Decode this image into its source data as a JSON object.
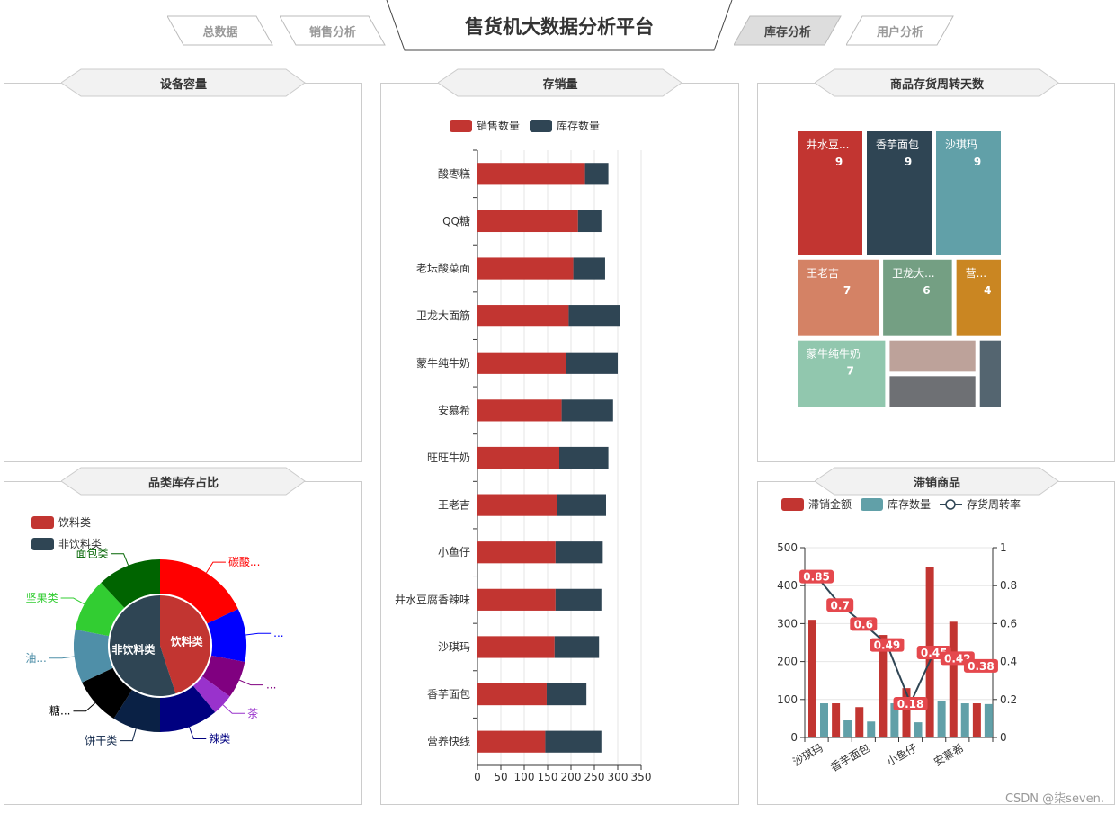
{
  "header": {
    "title": "售货机大数据分析平台",
    "tabs": [
      {
        "label": "总数据",
        "active": false
      },
      {
        "label": "销售分析",
        "active": false
      },
      {
        "label": "库存分析",
        "active": true
      },
      {
        "label": "用户分析",
        "active": false
      }
    ]
  },
  "panels": {
    "capacity": {
      "title": "设备容量"
    },
    "stock_sales": {
      "title": "存销量"
    },
    "turnover_days": {
      "title": "商品存货周转天数"
    },
    "category_share": {
      "title": "品类库存占比"
    },
    "slow_moving": {
      "title": "滞销商品"
    }
  },
  "watermark": "CSDN @柒seven.",
  "colors": {
    "red": "#c23531",
    "dark": "#2f4554",
    "teal": "#61a0a8",
    "label_red": "#e5484d"
  },
  "chart_data": [
    {
      "id": "stock_sales",
      "type": "bar",
      "orientation": "horizontal",
      "stacked": true,
      "legend": [
        "销售数量",
        "库存数量"
      ],
      "legend_position": "top",
      "categories": [
        "酸枣糕",
        "QQ糖",
        "老坛酸菜面",
        "卫龙大面筋",
        "蒙牛纯牛奶",
        "安慕希",
        "旺旺牛奶",
        "王老吉",
        "小鱼仔",
        "井水豆腐香辣味",
        "沙琪玛",
        "香芋面包",
        "营养快线"
      ],
      "series": [
        {
          "name": "销售数量",
          "values": [
            230,
            215,
            205,
            195,
            190,
            180,
            175,
            170,
            167,
            167,
            165,
            148,
            145
          ]
        },
        {
          "name": "库存数量",
          "values": [
            50,
            50,
            68,
            110,
            110,
            110,
            105,
            105,
            101,
            98,
            95,
            85,
            120
          ]
        }
      ],
      "xlim": [
        0,
        350
      ],
      "xticks": [
        0,
        50,
        100,
        150,
        200,
        250,
        300,
        350
      ],
      "grid": true
    },
    {
      "id": "turnover_days",
      "type": "treemap",
      "items": [
        {
          "name": "井水豆...",
          "value": 9,
          "value_label": "9",
          "color": "#c23531"
        },
        {
          "name": "香芋面包",
          "value": 9,
          "value_label": "9",
          "color": "#2f4554"
        },
        {
          "name": "沙琪玛",
          "value": 9,
          "value_label": "9",
          "color": "#61a0a8"
        },
        {
          "name": "王老吉",
          "value": 7,
          "value_label": "7",
          "color": "#d48265"
        },
        {
          "name": "卫龙大...",
          "value": 6,
          "value_label": "6",
          "color": "#749f83"
        },
        {
          "name": "营...",
          "value": 4,
          "value_label": "4",
          "color": "#ca8622"
        },
        {
          "name": "蒙牛纯牛奶",
          "value": 7,
          "value_label": "7",
          "color": "#91c7ae"
        },
        {
          "name": "",
          "value": 3,
          "value_label": "",
          "color": "#bda29a"
        },
        {
          "name": "",
          "value": 3,
          "value_label": "",
          "color": "#6e7074"
        },
        {
          "name": "",
          "value": 2,
          "value_label": "",
          "color": "#546570"
        }
      ]
    },
    {
      "id": "category_share",
      "type": "pie",
      "legend": [
        "饮料类",
        "非饮料类"
      ],
      "legend_position": "top-left",
      "inner": [
        {
          "name": "饮料类",
          "value": 45,
          "color": "#c23531"
        },
        {
          "name": "非饮料类",
          "value": 55,
          "color": "#2f4554"
        }
      ],
      "outer": [
        {
          "name": "碳酸...",
          "value": 18,
          "color": "#ff0000"
        },
        {
          "name": "...",
          "value": 10,
          "color": "#0000ff"
        },
        {
          "name": "...",
          "value": 7,
          "color": "#800080"
        },
        {
          "name": "茶",
          "value": 4,
          "color": "#9932cc"
        },
        {
          "name": "辣类",
          "value": 11,
          "color": "#000080"
        },
        {
          "name": "饼干类",
          "value": 9,
          "color": "#0a2145"
        },
        {
          "name": "糖...",
          "value": 9,
          "color": "#000000"
        },
        {
          "name": "油...",
          "value": 10,
          "color": "#4f8fa8"
        },
        {
          "name": "坚果类",
          "value": 10,
          "color": "#32cd32"
        },
        {
          "name": "面包类",
          "value": 12,
          "color": "#006400"
        }
      ]
    },
    {
      "id": "slow_moving",
      "type": "bar+line",
      "legend": [
        "滞销金额",
        "库存数量",
        "存货周转率"
      ],
      "legend_position": "top",
      "categories": [
        "沙琪玛",
        "",
        "香芋面包",
        "",
        "小鱼仔",
        "",
        "安慕希",
        ""
      ],
      "x_tick_labels": [
        "沙琪玛",
        "香芋面包",
        "小鱼仔",
        "安慕希"
      ],
      "series": [
        {
          "name": "滞销金额",
          "type": "bar",
          "values": [
            310,
            90,
            80,
            270,
            130,
            450,
            305,
            90
          ]
        },
        {
          "name": "库存数量",
          "type": "bar",
          "values": [
            90,
            45,
            42,
            90,
            40,
            95,
            90,
            88
          ]
        },
        {
          "name": "存货周转率",
          "type": "line",
          "axis": "right",
          "values": [
            0.85,
            0.7,
            0.6,
            0.49,
            0.18,
            0.45,
            0.42,
            0.38
          ],
          "labels": [
            "0.85",
            "0.7",
            "0.6",
            "0.49",
            "0.18",
            "0.45",
            "0.42",
            "0.38"
          ]
        }
      ],
      "ylim_left": [
        0,
        500
      ],
      "yticks_left": [
        0,
        100,
        200,
        300,
        400,
        500
      ],
      "ylim_right": [
        0,
        1
      ],
      "yticks_right": [
        "0",
        "0.2",
        "0.4",
        "0.6",
        "0.8",
        "1"
      ],
      "grid": true
    }
  ]
}
